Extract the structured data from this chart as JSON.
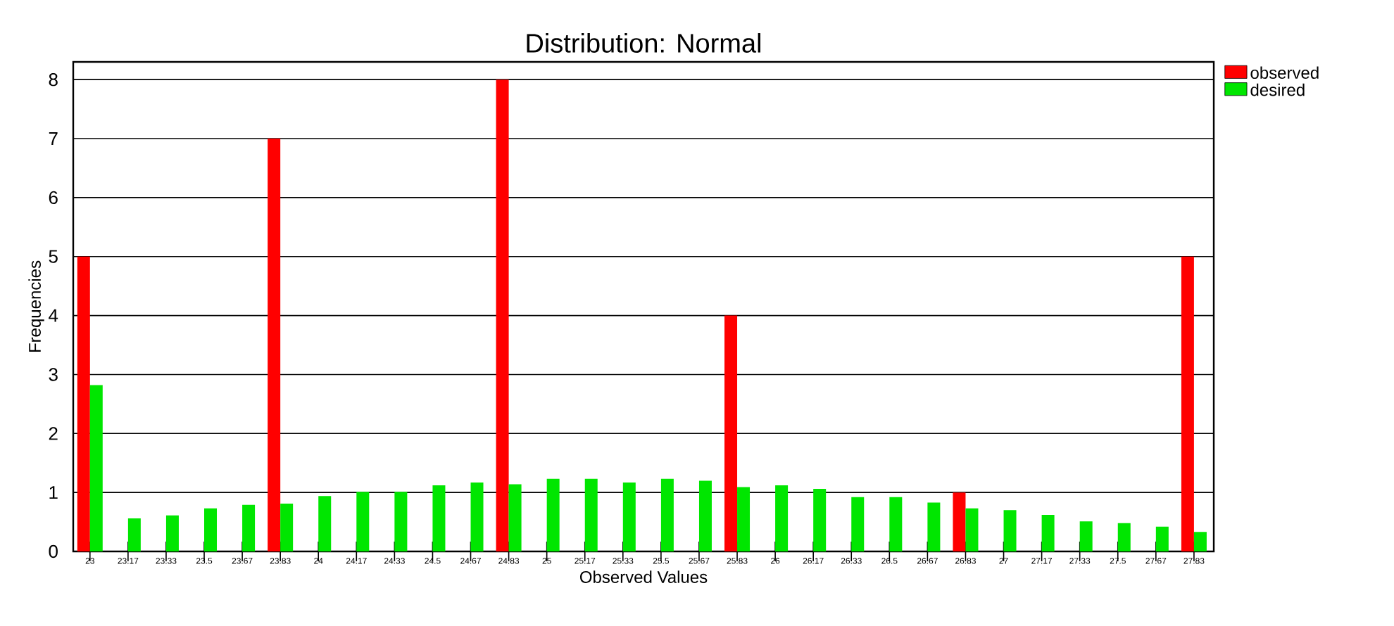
{
  "chart_data": {
    "type": "bar",
    "title": "Distribution: Normal",
    "xlabel": "Observed Values",
    "ylabel": "Frequencies",
    "categories": [
      "23",
      "23.17",
      "23.33",
      "23.5",
      "23.67",
      "23.83",
      "24",
      "24.17",
      "24.33",
      "24.5",
      "24.67",
      "24.83",
      "25",
      "25.17",
      "25.33",
      "25.5",
      "25.67",
      "25.83",
      "26",
      "26.17",
      "26.33",
      "26.5",
      "26.67",
      "26.83",
      "27",
      "27.17",
      "27.33",
      "27.5",
      "27.67",
      "27.83"
    ],
    "series": [
      {
        "name": "observed",
        "color": "#ff0000",
        "values": [
          5,
          0,
          0,
          0,
          0,
          7,
          0,
          0,
          0,
          0,
          0,
          8,
          0,
          0,
          0,
          0,
          0,
          4,
          0,
          0,
          0,
          0,
          0,
          1,
          0,
          0,
          0,
          0,
          0,
          5
        ]
      },
      {
        "name": "desired",
        "color": "#00e600",
        "values": [
          2.82,
          0.56,
          0.61,
          0.73,
          0.79,
          0.81,
          0.94,
          1.01,
          1.01,
          1.12,
          1.17,
          1.14,
          1.23,
          1.23,
          1.17,
          1.23,
          1.2,
          1.09,
          1.12,
          1.06,
          0.92,
          0.92,
          0.83,
          0.73,
          0.7,
          0.62,
          0.51,
          0.48,
          0.42,
          0.33
        ]
      }
    ],
    "ylim": [
      0,
      8.3
    ],
    "yticks": [
      0,
      1,
      2,
      3,
      4,
      5,
      6,
      7,
      8
    ],
    "grid": "y",
    "legend": "top right"
  }
}
